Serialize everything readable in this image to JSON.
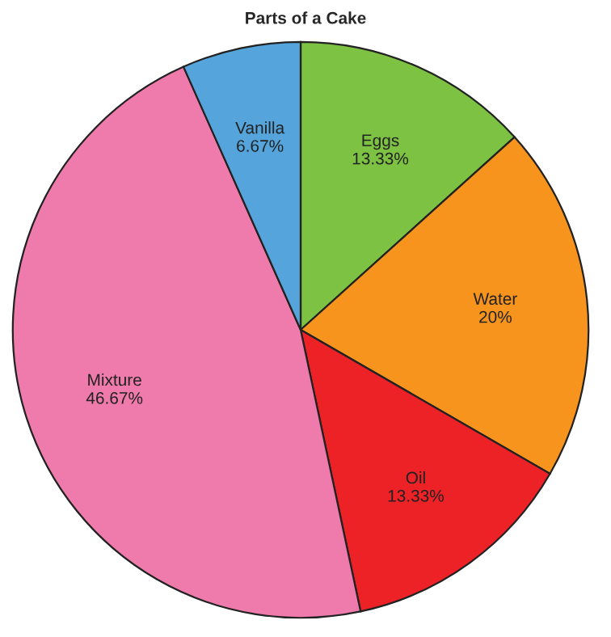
{
  "chart_data": {
    "type": "pie",
    "title": "Parts of a Cake",
    "categories": [
      "Eggs",
      "Water",
      "Oil",
      "Mixture",
      "Vanilla"
    ],
    "values": [
      13.33,
      20,
      13.33,
      46.67,
      6.67
    ],
    "value_labels": [
      "13.33%",
      "20%",
      "13.33%",
      "46.67%",
      "6.67%"
    ],
    "colors": [
      "#7dc242",
      "#f7941d",
      "#ed2227",
      "#ef7bac",
      "#55a5dc"
    ],
    "legend": false
  }
}
